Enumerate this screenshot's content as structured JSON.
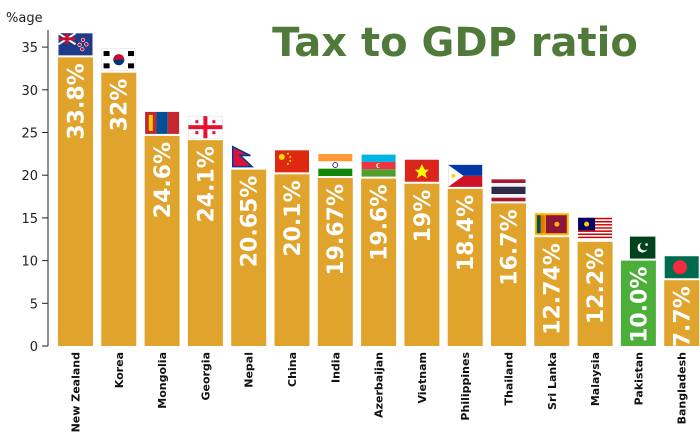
{
  "chart_data": {
    "type": "bar",
    "title": "Tax to GDP ratio",
    "ylabel": "%age",
    "xlabel": "",
    "ylim": [
      0,
      37
    ],
    "yticks": [
      0,
      5,
      10,
      15,
      20,
      25,
      30,
      35
    ],
    "grid": false,
    "categories": [
      "New Zealand",
      "Korea",
      "Mongolia",
      "Georgia",
      "Nepal",
      "China",
      "India",
      "Azerbaijan",
      "Vietnam",
      "Philippines",
      "Thailand",
      "Sri Lanka",
      "Malaysia",
      "Pakistan",
      "Bangladesh"
    ],
    "values": [
      33.8,
      32,
      24.6,
      24.1,
      20.65,
      20.1,
      19.67,
      19.6,
      19,
      18.4,
      16.7,
      12.74,
      12.2,
      10.0,
      7.7
    ],
    "value_labels": [
      "33.8%",
      "32%",
      "24.6%",
      "24.1%",
      "20.65%",
      "20.1%",
      "19.67%",
      "19.6%",
      "19%",
      "18.4%",
      "16.7%",
      "12.74%",
      "12.2%",
      "10.0%",
      "7.7%"
    ],
    "flags": [
      "new-zealand-flag-icon",
      "korea-flag-icon",
      "mongolia-flag-icon",
      "georgia-flag-icon",
      "nepal-flag-icon",
      "china-flag-icon",
      "india-flag-icon",
      "azerbaijan-flag-icon",
      "vietnam-flag-icon",
      "philippines-flag-icon",
      "thailand-flag-icon",
      "sri-lanka-flag-icon",
      "malaysia-flag-icon",
      "pakistan-flag-icon",
      "bangladesh-flag-icon"
    ],
    "colors": {
      "bar": "#e0a32c",
      "highlight_bar": "#4caf3a",
      "title": "#4f7a3a",
      "axis": "#222222"
    },
    "highlight_category": "Pakistan"
  }
}
